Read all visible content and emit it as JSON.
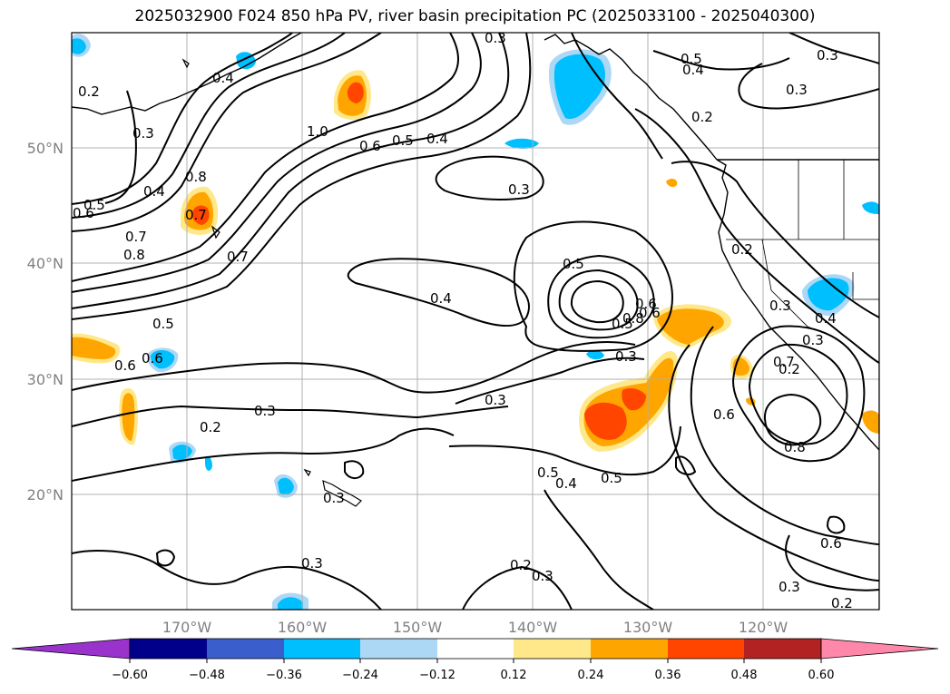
{
  "title": "2025032900 F024 850 hPa PV, river basin precipitation PC (2025033100 - 2025040300)",
  "map": {
    "lon_labels": [
      "170°W",
      "160°W",
      "150°W",
      "140°W",
      "130°W",
      "120°W"
    ],
    "lat_labels": [
      "50°N",
      "40°N",
      "30°N",
      "20°N"
    ],
    "colors": {
      "contour": "#000000",
      "coast": "#000000",
      "grid": "#b0b0b0",
      "neg_light": "#add8f5",
      "neg_mid": "#00bfff",
      "pos_light": "#ffe88a",
      "pos_mid": "#ffa500",
      "pos_strong": "#ff4500"
    },
    "contour_labels": [
      "0.3",
      "0.5",
      "0.4",
      "0.3",
      "0.3",
      "0.2",
      "0.4",
      "0.2",
      "0.3",
      "0.5",
      "0.4",
      "0.6",
      "1.0",
      "0.6",
      "0.5",
      "0.4",
      "0.8",
      "0.7",
      "0.5",
      "0.6",
      "0.8",
      "0.7",
      "0.3",
      "0.2",
      "0.3",
      "0.4",
      "0.7",
      "0.5",
      "0.6",
      "0.3",
      "0.2",
      "0.3",
      "0.5",
      "0.6",
      "0.8",
      "0.6",
      "0.3",
      "0.3",
      "0.5",
      "0.4",
      "0.5",
      "0.6",
      "0.8",
      "0.3",
      "0.2",
      "0.3",
      "0.2",
      "0.3",
      "0.6",
      "0.2",
      "0.3",
      "0.7",
      "0.4"
    ]
  },
  "colorbar": {
    "ticks": [
      "−0.60",
      "−0.48",
      "−0.36",
      "−0.24",
      "−0.12",
      "0.12",
      "0.24",
      "0.36",
      "0.48",
      "0.60"
    ],
    "colors": [
      "#9933cc",
      "#00008b",
      "#3a5fcd",
      "#00bfff",
      "#add8f5",
      "#ffffff",
      "#ffe88a",
      "#ffa500",
      "#ff4500",
      "#b22222",
      "#ff88aa"
    ]
  }
}
